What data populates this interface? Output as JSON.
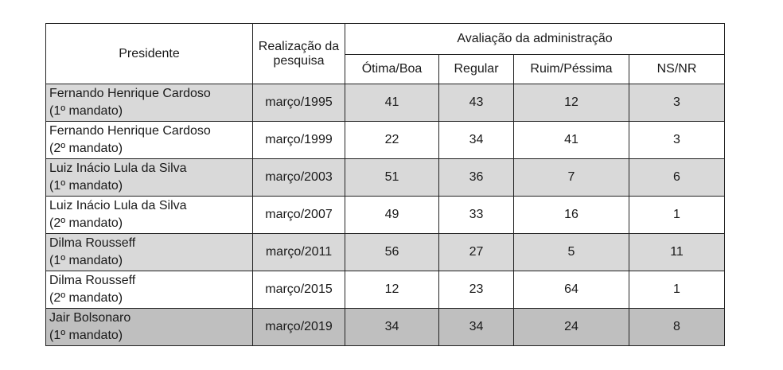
{
  "chart_data": {
    "type": "table",
    "headers": {
      "president": "Presidente",
      "date": "Realização da pesquisa",
      "group": "Avaliação da administração",
      "cols": [
        "Ótima/Boa",
        "Regular",
        "Ruim/Péssima",
        "NS/NR"
      ]
    },
    "rows": [
      {
        "name": "Fernando Henrique Cardoso",
        "term": "(1º mandato)",
        "date": "março/1995",
        "values": [
          41,
          43,
          12,
          3
        ]
      },
      {
        "name": "Fernando Henrique Cardoso",
        "term": "(2º mandato)",
        "date": "março/1999",
        "values": [
          22,
          34,
          41,
          3
        ]
      },
      {
        "name": "Luiz Inácio Lula da Silva",
        "term": "(1º mandato)",
        "date": "março/2003",
        "values": [
          51,
          36,
          7,
          6
        ]
      },
      {
        "name": "Luiz Inácio Lula da Silva",
        "term": "(2º mandato)",
        "date": "março/2007",
        "values": [
          49,
          33,
          16,
          1
        ]
      },
      {
        "name": "Dilma Rousseff",
        "term": "(1º mandato)",
        "date": "março/2011",
        "values": [
          56,
          27,
          5,
          11
        ]
      },
      {
        "name": "Dilma Rousseff",
        "term": "(2º mandato)",
        "date": "março/2015",
        "values": [
          12,
          23,
          64,
          1
        ]
      },
      {
        "name": "Jair Bolsonaro",
        "term": "(1º mandato)",
        "date": "março/2019",
        "values": [
          34,
          34,
          24,
          8
        ]
      }
    ]
  }
}
